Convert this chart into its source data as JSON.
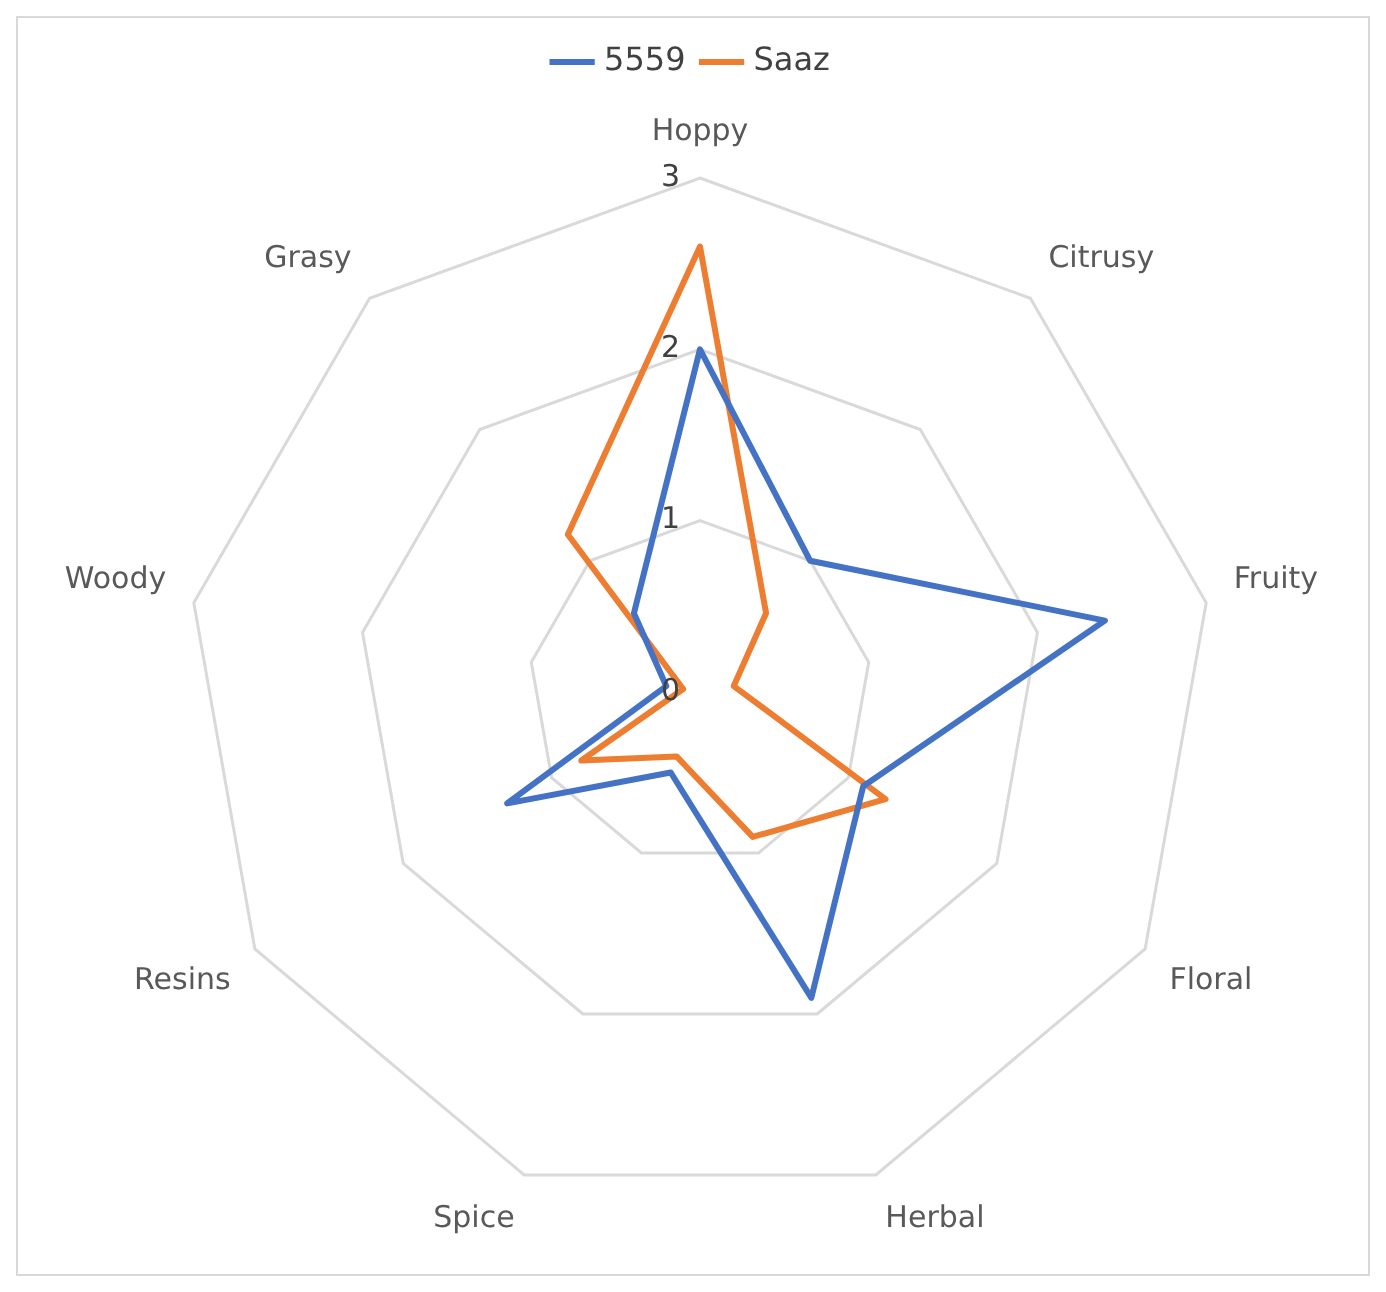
{
  "chart_data": {
    "type": "radar",
    "categories": [
      "Hoppy",
      "Citrusy",
      "Fruity",
      "Floral",
      "Herbal",
      "Spice",
      "Resins",
      "Woody",
      "Grasy"
    ],
    "series": [
      {
        "name": "5559",
        "color": "#4472c4",
        "values": [
          2.0,
          1.0,
          2.4,
          1.1,
          1.9,
          0.5,
          1.3,
          0.2,
          0.6
        ]
      },
      {
        "name": "Saaz",
        "color": "#ed7d31",
        "values": [
          2.6,
          0.6,
          0.2,
          1.25,
          0.9,
          0.4,
          0.8,
          0.1,
          1.2
        ]
      }
    ],
    "ylim": [
      0,
      3
    ],
    "yticks": [
      0,
      1,
      2,
      3
    ],
    "grid": true,
    "legend": "top",
    "marker": "none",
    "line_style": "solid"
  }
}
